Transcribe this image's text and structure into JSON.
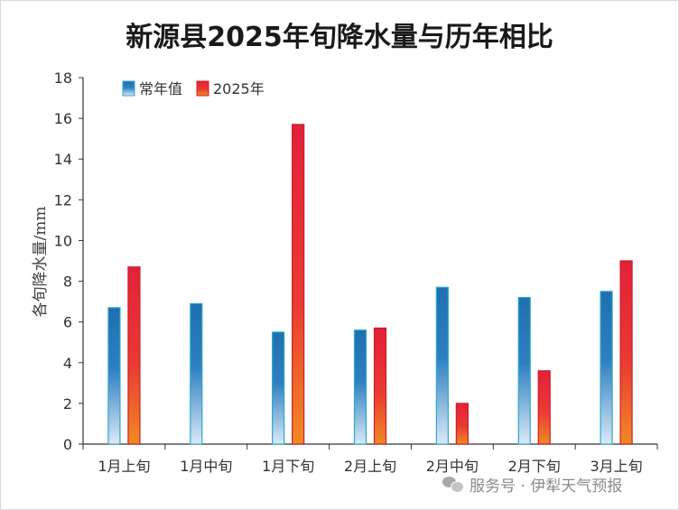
{
  "chart_data": {
    "type": "bar",
    "title": "新源县2025年旬降水量与历年相比",
    "ylabel": "各旬降水量/mm",
    "xlabel": "",
    "ylim": [
      0,
      18
    ],
    "yticks": [
      0,
      2,
      4,
      6,
      8,
      10,
      12,
      14,
      16,
      18
    ],
    "grid": false,
    "legend_position": "top-left",
    "categories": [
      "1月上旬",
      "1月中旬",
      "1月下旬",
      "2月上旬",
      "2月中旬",
      "2月下旬",
      "3月上旬"
    ],
    "series": [
      {
        "name": "常年值",
        "values": [
          6.7,
          6.9,
          5.5,
          5.6,
          7.7,
          7.2,
          7.5
        ],
        "color": "#2e75b6"
      },
      {
        "name": "2025年",
        "values": [
          8.7,
          0,
          15.7,
          5.7,
          2.0,
          3.6,
          9.0
        ],
        "color": "#e8283c"
      }
    ]
  },
  "watermark": {
    "icon": "wechat-icon",
    "text": "服务号 · 伊犁天气预报"
  }
}
